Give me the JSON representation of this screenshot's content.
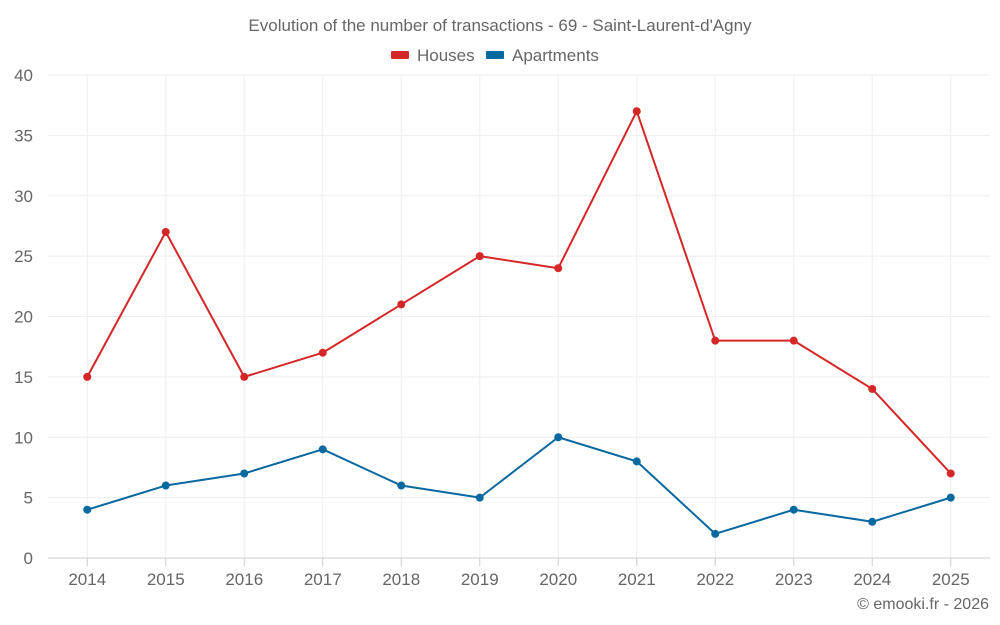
{
  "chart_data": {
    "type": "line",
    "title": "Evolution of the number of transactions - 69 - Saint-Laurent-d'Agny",
    "categories": [
      "2014",
      "2015",
      "2016",
      "2017",
      "2018",
      "2019",
      "2020",
      "2021",
      "2022",
      "2023",
      "2024",
      "2025"
    ],
    "series": [
      {
        "name": "Houses",
        "color": "#d62728",
        "values": [
          15,
          27,
          15,
          17,
          21,
          25,
          24,
          37,
          18,
          18,
          14,
          7
        ]
      },
      {
        "name": "Apartments",
        "color": "#0868a0",
        "values": [
          4,
          6,
          7,
          9,
          6,
          5,
          10,
          8,
          2,
          4,
          3,
          5
        ]
      }
    ],
    "ylim": [
      0,
      40
    ],
    "yticks": [
      "0",
      "5",
      "10",
      "15",
      "20",
      "25",
      "30",
      "35",
      "40"
    ],
    "grid": true,
    "legend_position": "top-center",
    "xlabel": "",
    "ylabel": ""
  },
  "credit": "© emooki.fr - 2026"
}
